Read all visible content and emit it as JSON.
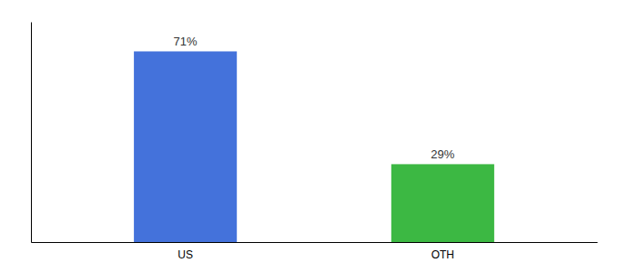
{
  "chart_data": {
    "type": "bar",
    "categories": [
      "US",
      "OTH"
    ],
    "values": [
      71,
      29
    ],
    "colors": [
      "#4472db",
      "#3cb843"
    ],
    "ylim": [
      0,
      82
    ],
    "data_labels": true,
    "value_labels": [
      "71%",
      "29%"
    ],
    "tick_labels": "x"
  }
}
